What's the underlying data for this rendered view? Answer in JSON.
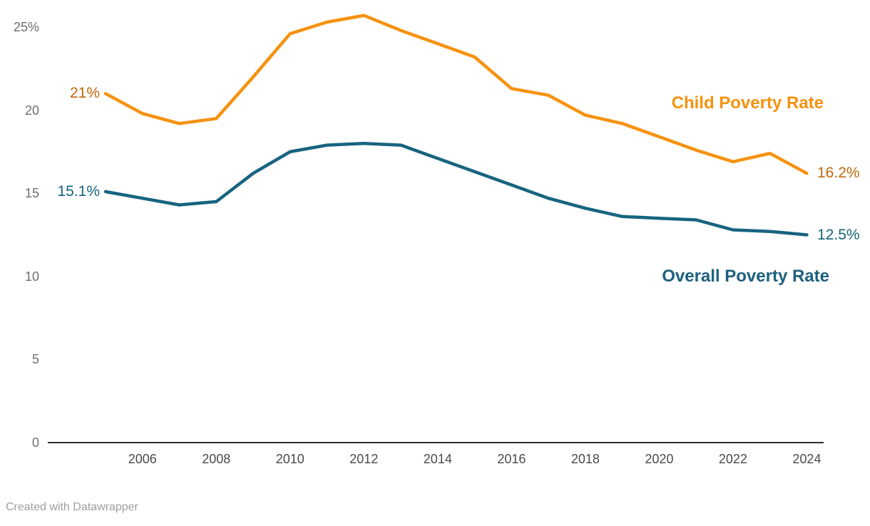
{
  "chart_data": {
    "type": "line",
    "x": [
      2005,
      2006,
      2007,
      2008,
      2009,
      2010,
      2011,
      2012,
      2013,
      2014,
      2015,
      2016,
      2017,
      2018,
      2019,
      2020,
      2021,
      2022,
      2023,
      2024
    ],
    "series": [
      {
        "id": "child-poverty-rate",
        "name": "Child Poverty Rate",
        "color": "#f6920f",
        "label_color": "#c1690a",
        "start_label": "21%",
        "end_label": "16.2%",
        "values": [
          21,
          19.8,
          19.2,
          19.5,
          22,
          24.6,
          25.3,
          25.7,
          24.8,
          24,
          23.2,
          21.3,
          20.9,
          19.7,
          19.2,
          18.4,
          17.6,
          16.9,
          17.4,
          16.2
        ]
      },
      {
        "id": "overall-poverty-rate",
        "name": "Overall Poverty Rate",
        "color": "#17647f",
        "label_color": "#15627c",
        "start_label": "15.1%",
        "end_label": "12.5%",
        "values": [
          15.1,
          14.7,
          14.3,
          14.5,
          16.2,
          17.5,
          17.9,
          18,
          17.9,
          17.1,
          16.3,
          15.5,
          14.7,
          14.1,
          13.6,
          13.5,
          13.4,
          12.8,
          12.7,
          12.5
        ]
      }
    ],
    "x_axis": {
      "ticks": [
        2006,
        2008,
        2010,
        2012,
        2014,
        2016,
        2018,
        2020,
        2022,
        2024
      ]
    },
    "y_axis": {
      "ticks": [
        {
          "value": 25,
          "label": "25%"
        },
        {
          "value": 20,
          "label": "20"
        },
        {
          "value": 15,
          "label": "15"
        },
        {
          "value": 10,
          "label": "10"
        },
        {
          "value": 5,
          "label": "5"
        },
        {
          "value": 0,
          "label": "0"
        }
      ]
    },
    "ylim": [
      0,
      26
    ],
    "grid": false,
    "legend_position": "inline-right",
    "unit": "%"
  },
  "footer": {
    "credit": "Created with Datawrapper"
  }
}
